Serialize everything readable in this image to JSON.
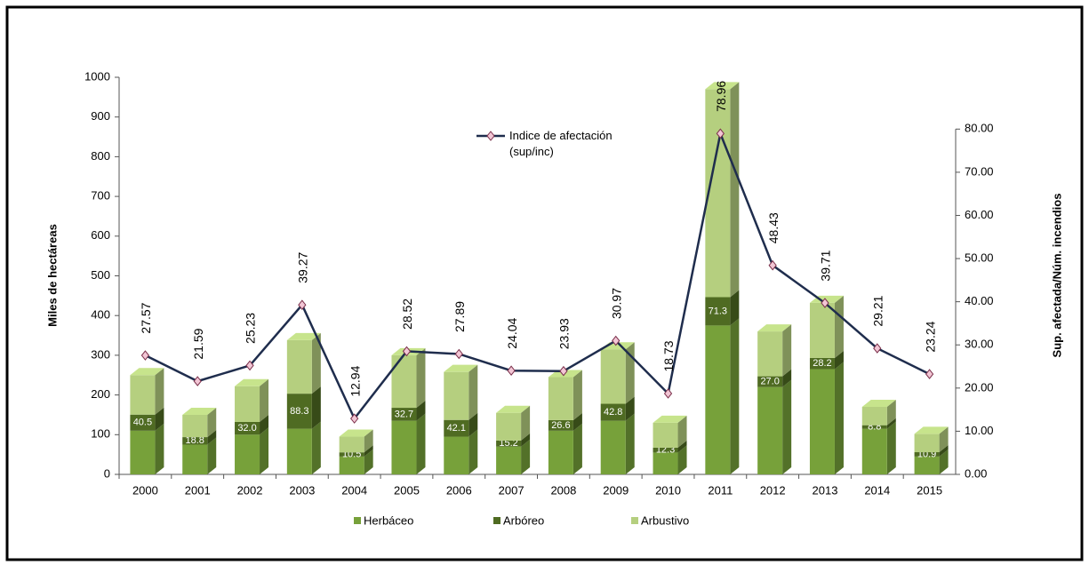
{
  "chart_data": {
    "type": "bar",
    "stacked": true,
    "categories": [
      "2000",
      "2001",
      "2002",
      "2003",
      "2004",
      "2005",
      "2006",
      "2007",
      "2008",
      "2009",
      "2010",
      "2011",
      "2012",
      "2013",
      "2014",
      "2015"
    ],
    "series": [
      {
        "name": "Herbáceo",
        "color": "#77a13a",
        "values": [
          110,
          75,
          100,
          115,
          45,
          135,
          95,
          70,
          110,
          135,
          55,
          375,
          220,
          265,
          115,
          45
        ]
      },
      {
        "name": "Arbóreo",
        "color": "#4f6b22",
        "values": [
          40.5,
          18.8,
          32.0,
          88.3,
          10.5,
          32.7,
          42.1,
          15.2,
          26.6,
          42.8,
          12.3,
          71.3,
          27.0,
          28.2,
          8.8,
          10.9
        ],
        "value_labels": [
          "40.5",
          "18.8",
          "32.0",
          "88.3",
          "10.5",
          "32.7",
          "42.1",
          "15.2",
          "26.6",
          "42.8",
          "12.3",
          "71.3",
          "27.0",
          "28.2",
          "8.8",
          "10.9"
        ]
      },
      {
        "name": "Arbustivo",
        "color": "#b5cf7f",
        "values": [
          99.5,
          56.2,
          90,
          134.7,
          39.5,
          132.3,
          120.9,
          69.8,
          108.4,
          137.2,
          62.7,
          523.7,
          113,
          138.8,
          46.2,
          46.1
        ]
      },
      {
        "name": "Indice de afectación (sup/inc)",
        "type": "line",
        "axis": "y2",
        "color": "#1f2d4d",
        "values": [
          27.57,
          21.59,
          25.23,
          39.27,
          12.94,
          28.52,
          27.89,
          24.04,
          23.93,
          30.97,
          18.73,
          78.96,
          48.43,
          39.71,
          29.21,
          23.24
        ]
      }
    ],
    "ylabel": "Miles de hectáreas",
    "y2label": "Sup. afectada/Núm. incendios",
    "ylim": [
      0,
      1000
    ],
    "yticks": [
      0,
      100,
      200,
      300,
      400,
      500,
      600,
      700,
      800,
      900,
      1000
    ],
    "y2lim": [
      0,
      92
    ],
    "y2ticks": [
      {
        "value": 0,
        "label": "0.00"
      },
      {
        "value": 10,
        "label": "10.00"
      },
      {
        "value": 20,
        "label": "20.00"
      },
      {
        "value": 30,
        "label": "30.00"
      },
      {
        "value": 40,
        "label": "40.00"
      },
      {
        "value": 50,
        "label": "50.00"
      },
      {
        "value": 60,
        "label": "60.00"
      },
      {
        "value": 70,
        "label": "70.00"
      },
      {
        "value": 80,
        "label": "80.00"
      }
    ],
    "grid": false
  }
}
